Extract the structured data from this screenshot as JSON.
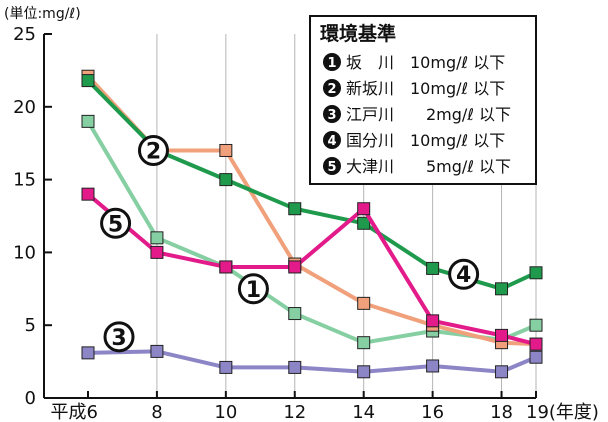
{
  "chart_data": {
    "type": "line",
    "unit_label": "(単位:mg/ℓ)",
    "ylim": [
      0,
      25
    ],
    "y_ticks": [
      0,
      5,
      10,
      15,
      20,
      25
    ],
    "x_axis": {
      "ticks": [
        6,
        8,
        10,
        12,
        14,
        16,
        18,
        19
      ],
      "tick_labels": [
        "平成6",
        "8",
        "10",
        "12",
        "14",
        "16",
        "18",
        "19(年度)"
      ],
      "range": [
        6,
        19
      ]
    },
    "grid": "vertical",
    "legend": {
      "title": "環境基準",
      "placement": "top-right",
      "items": [
        {
          "num": "1",
          "text": "坂　川　10mg/ℓ 以下"
        },
        {
          "num": "2",
          "text": "新坂川　10mg/ℓ 以下"
        },
        {
          "num": "3",
          "text": "江戸川　　2mg/ℓ 以下"
        },
        {
          "num": "4",
          "text": "国分川　10mg/ℓ 以下"
        },
        {
          "num": "5",
          "text": "大津川　　5mg/ℓ 以下"
        }
      ]
    },
    "series": [
      {
        "num": "1",
        "name": "坂川",
        "color": "#86cfa2",
        "x": [
          6,
          8,
          10,
          12,
          14,
          16,
          18,
          19
        ],
        "values": [
          19.0,
          11.0,
          9.0,
          5.8,
          3.8,
          4.6,
          4.0,
          5.0
        ]
      },
      {
        "num": "2",
        "name": "新坂川",
        "color": "#f0a07a",
        "x": [
          6,
          8,
          10,
          12,
          14,
          16,
          18,
          19
        ],
        "values": [
          22.1,
          17.0,
          17.0,
          9.2,
          6.5,
          5.0,
          3.8,
          3.7
        ]
      },
      {
        "num": "3",
        "name": "江戸川",
        "color": "#8c85c6",
        "x": [
          6,
          8,
          10,
          12,
          14,
          16,
          18,
          19
        ],
        "values": [
          3.1,
          3.2,
          2.1,
          2.1,
          1.8,
          2.2,
          1.8,
          2.8
        ]
      },
      {
        "num": "4",
        "name": "国分川",
        "color": "#1f9a4c",
        "x": [
          6,
          8,
          10,
          12,
          14,
          16,
          18,
          19
        ],
        "values": [
          21.8,
          17.0,
          15.0,
          13.0,
          12.0,
          8.9,
          7.5,
          8.6
        ]
      },
      {
        "num": "5",
        "name": "大津川",
        "color": "#e31b8a",
        "x": [
          6,
          8,
          10,
          12,
          14,
          16,
          18,
          19
        ],
        "values": [
          14.0,
          10.0,
          9.0,
          9.0,
          13.0,
          5.3,
          4.3,
          3.7
        ]
      }
    ],
    "series_markers": [
      {
        "num": "2",
        "x": 7.9,
        "y": 17.0
      },
      {
        "num": "5",
        "x": 6.8,
        "y": 12.0
      },
      {
        "num": "1",
        "x": 10.8,
        "y": 7.5
      },
      {
        "num": "3",
        "x": 6.9,
        "y": 4.2
      },
      {
        "num": "4",
        "x": 16.9,
        "y": 8.5
      }
    ]
  }
}
